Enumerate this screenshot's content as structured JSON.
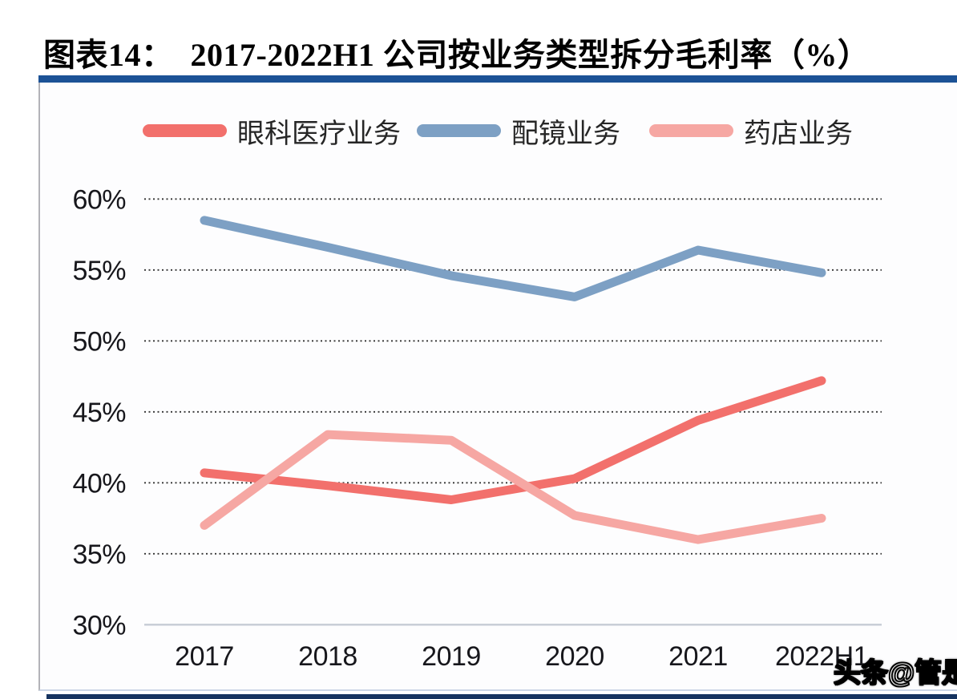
{
  "header": {
    "title": "图表14：  2017-2022H1 公司按业务类型拆分毛利率（%）"
  },
  "watermark": {
    "text": "头条@管是"
  },
  "colors": {
    "top_bar": "#1c5296",
    "bottom_bar": "#16335f",
    "gridline": "#333333",
    "baseline": "#c6cbd5",
    "tick_text": "#17171c"
  },
  "chart_data": {
    "type": "line",
    "title": "2017-2022H1 公司按业务类型拆分毛利率（%）",
    "categories": [
      "2017",
      "2018",
      "2019",
      "2020",
      "2021",
      "2022H1"
    ],
    "series": [
      {
        "name": "眼科医疗业务",
        "color": "#f2706c",
        "values": [
          40.7,
          39.8,
          38.8,
          40.3,
          44.4,
          47.2
        ]
      },
      {
        "name": "配镜业务",
        "color": "#7da0c4",
        "values": [
          58.5,
          56.6,
          54.6,
          53.1,
          56.4,
          54.8
        ]
      },
      {
        "name": "药店业务",
        "color": "#f6a7a3",
        "values": [
          37.0,
          43.4,
          43.0,
          37.7,
          36.0,
          37.5
        ]
      }
    ],
    "xlabel": "",
    "ylabel": "",
    "ylim": [
      30,
      60
    ],
    "y_ticks": [
      "60%",
      "55%",
      "50%",
      "45%",
      "40%",
      "35%",
      "30%"
    ],
    "grid": "horizontal-dotted",
    "legend_position": "top"
  }
}
